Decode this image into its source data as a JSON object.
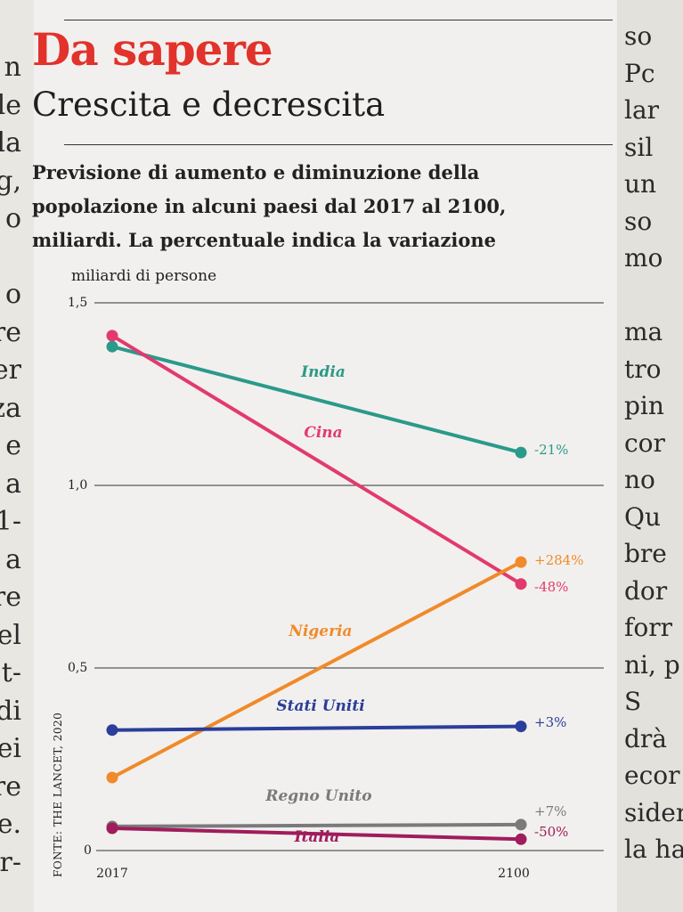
{
  "left_column": [
    "n",
    "le",
    "la",
    "g,",
    "o",
    "",
    "o",
    "re",
    "er",
    "za",
    "e",
    "a",
    "1-",
    "a",
    "re",
    "el",
    "t-",
    "di",
    "ei",
    "re",
    "re.",
    "er-"
  ],
  "right_column": [
    "so",
    "Pc",
    "lar",
    "sil",
    "un",
    "so",
    "mo",
    "",
    "ma",
    "tro",
    "pin",
    "cor",
    "no",
    "Qu",
    "bre",
    "dor",
    "forr",
    "ni, p",
    "S",
    "drà",
    "ecor",
    "sider",
    "la ha"
  ],
  "kicker": "Da sapere",
  "title": "Crescita e decrescita",
  "subtitle": "Previsione di aumento e diminuzione della popolazione in alcuni paesi dal 2017 al 2100, miliardi. La percentuale indica la variazione",
  "source": "FONTE: THE LANCET, 2020",
  "colors": {
    "india": "#2a9a8a",
    "cina": "#e23a6e",
    "nigeria": "#f08a2a",
    "stati_uniti": "#2a3e9a",
    "regno_unito": "#7a7a7a",
    "italia": "#a01c5c"
  },
  "chart_data": {
    "type": "line",
    "ylabel": "miliardi di persone",
    "xlabel": "",
    "x": [
      "2017",
      "2100"
    ],
    "yticks": [
      "0",
      "0,5",
      "1,0",
      "1,5"
    ],
    "ytick_values": [
      0,
      0.5,
      1.0,
      1.5
    ],
    "ylim": [
      0,
      1.5
    ],
    "grid": true,
    "series": [
      {
        "name": "India",
        "key": "india",
        "values": [
          1.38,
          1.09
        ],
        "change": "-21%"
      },
      {
        "name": "Cina",
        "key": "cina",
        "values": [
          1.41,
          0.73
        ],
        "change": "-48%"
      },
      {
        "name": "Nigeria",
        "key": "nigeria",
        "values": [
          0.2,
          0.79
        ],
        "change": "+284%"
      },
      {
        "name": "Stati Uniti",
        "key": "stati_uniti",
        "values": [
          0.33,
          0.34
        ],
        "change": "+3%"
      },
      {
        "name": "Regno Unito",
        "key": "regno_unito",
        "values": [
          0.066,
          0.071
        ],
        "change": "+7%"
      },
      {
        "name": "Italia",
        "key": "italia",
        "values": [
          0.061,
          0.031
        ],
        "change": "-50%"
      }
    ]
  }
}
